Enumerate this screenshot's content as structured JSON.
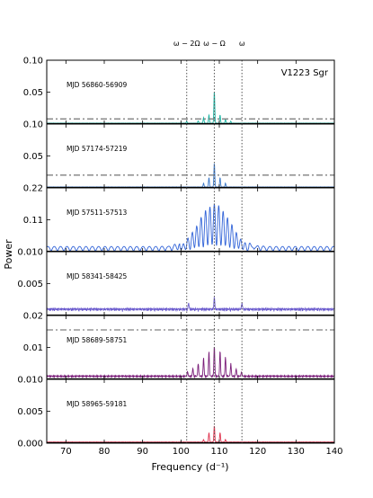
{
  "chart_data": {
    "type": "line",
    "star": "V1223 Sgr",
    "xlabel": "Frequency (d⁻¹)",
    "ylabel": "Power",
    "xlim": [
      65,
      140
    ],
    "xticks": [
      "70",
      "80",
      "90",
      "100",
      "110",
      "120",
      "130",
      "140"
    ],
    "frequency_markers": [
      {
        "label": "ω − 2Ω",
        "x": 101.5
      },
      {
        "label": "ω − Ω",
        "x": 108.7
      },
      {
        "label": "ω",
        "x": 115.9
      }
    ],
    "panels": [
      {
        "label": "MJD 56860-56909",
        "color": "#1bb3a2",
        "ylim": [
          0,
          0.1
        ],
        "yticks": [
          "0.10",
          "0.05"
        ],
        "threshold": 0.008,
        "baseline": 0.0008,
        "peaks": [
          [
            108.7,
            0.05
          ],
          [
            107.3,
            0.013
          ],
          [
            110.2,
            0.013
          ],
          [
            105.9,
            0.009
          ],
          [
            111.6,
            0.006
          ],
          [
            104.5,
            0.004
          ],
          [
            113.0,
            0.003
          ],
          [
            101.5,
            0.003
          ]
        ]
      },
      {
        "label": "MJD 57174-57219",
        "color": "#3a78c9",
        "ylim": [
          0,
          0.1
        ],
        "yticks": [
          "0.10",
          "0.05"
        ],
        "threshold": 0.02,
        "baseline": 0.0008,
        "peaks": [
          [
            108.7,
            0.038
          ],
          [
            107.3,
            0.015
          ],
          [
            110.2,
            0.015
          ],
          [
            105.9,
            0.006
          ],
          [
            111.6,
            0.006
          ]
        ]
      },
      {
        "label": "MJD 57511-57513",
        "color": "#3264d8",
        "ylim": [
          0,
          0.22
        ],
        "yticks": [
          "0.22",
          "0.11"
        ],
        "threshold": null,
        "baseline": 0.0,
        "envelope": {
          "center": 108.7,
          "peak": 0.16,
          "width": 4.2,
          "side_lobe": 0.018,
          "fringe_period": 1.15
        }
      },
      {
        "label": "MJD 58341-58425",
        "color": "#6a5acd",
        "ylim": [
          0,
          0.01
        ],
        "yticks": [
          "0.010",
          "0.005"
        ],
        "threshold": null,
        "baseline": 0.0006,
        "peaks": [
          [
            108.7,
            0.0018
          ],
          [
            102.0,
            0.001
          ],
          [
            115.9,
            0.001
          ]
        ]
      },
      {
        "label": "MJD 58689-58751",
        "color": "#7b1e7a",
        "ylim": [
          0,
          0.02
        ],
        "yticks": [
          "0.02",
          "0.01"
        ],
        "threshold": 0.0155,
        "baseline": 0.0006,
        "peaks": [
          [
            108.7,
            0.0095
          ],
          [
            107.3,
            0.0078
          ],
          [
            110.2,
            0.008
          ],
          [
            105.9,
            0.0058
          ],
          [
            111.6,
            0.006
          ],
          [
            104.5,
            0.0042
          ],
          [
            113.0,
            0.004
          ],
          [
            103.1,
            0.0025
          ],
          [
            114.4,
            0.0024
          ],
          [
            101.7,
            0.0015
          ],
          [
            115.8,
            0.0014
          ]
        ]
      },
      {
        "label": "MJD 58965-59181",
        "color": "#e0344f",
        "ylim": [
          0,
          0.01
        ],
        "yticks": [
          "0.010",
          "0.005",
          "0.000"
        ],
        "threshold": null,
        "baseline": 0.0001,
        "peaks": [
          [
            108.7,
            0.0026
          ],
          [
            107.3,
            0.0015
          ],
          [
            110.2,
            0.0015
          ],
          [
            105.9,
            0.0004
          ],
          [
            111.6,
            0.0004
          ]
        ]
      }
    ]
  }
}
